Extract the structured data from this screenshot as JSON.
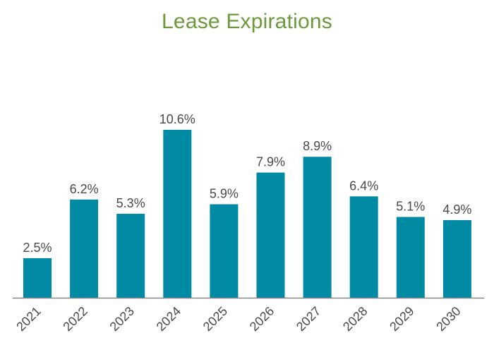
{
  "chart_data": {
    "type": "bar",
    "title": "Lease Expirations",
    "xlabel": "",
    "ylabel": "",
    "categories": [
      "2021",
      "2022",
      "2023",
      "2024",
      "2025",
      "2026",
      "2027",
      "2028",
      "2029",
      "2030"
    ],
    "values": [
      2.5,
      6.2,
      5.3,
      10.6,
      5.9,
      7.9,
      8.9,
      6.4,
      5.1,
      4.9
    ],
    "data_labels": [
      "2.5%",
      "6.2%",
      "5.3%",
      "10.6%",
      "5.9%",
      "7.9%",
      "8.9%",
      "6.4%",
      "5.1%",
      "4.9%"
    ],
    "unit": "%",
    "ylim": [
      0,
      12
    ],
    "grid": false,
    "legend": "none"
  },
  "colors": {
    "bar": "#008aa4",
    "title": "#6b9a3c",
    "text": "#4a4a4a",
    "axis": "#888888"
  }
}
